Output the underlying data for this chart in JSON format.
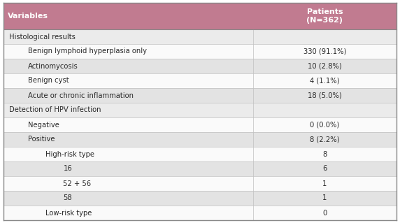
{
  "header_bg": "#c17b90",
  "header_text_color": "#ffffff",
  "text_color": "#2a2a2a",
  "header_col1": "Variables",
  "header_col2": "Patients\n(N=362)",
  "rows": [
    {
      "label": "Histological results",
      "value": "",
      "indent": 0,
      "section": true,
      "bg": "#ebebeb"
    },
    {
      "label": "Benign lymphoid hyperplasia only",
      "value": "330 (91.1%)",
      "indent": 1,
      "section": false,
      "bg": "#fafafa"
    },
    {
      "label": "Actinomycosis",
      "value": "10 (2.8%)",
      "indent": 1,
      "section": false,
      "bg": "#e3e3e3"
    },
    {
      "label": "Benign cyst",
      "value": "4 (1.1%)",
      "indent": 1,
      "section": false,
      "bg": "#fafafa"
    },
    {
      "label": "Acute or chronic inflammation",
      "value": "18 (5.0%)",
      "indent": 1,
      "section": false,
      "bg": "#e3e3e3"
    },
    {
      "label": "Detection of HPV infection",
      "value": "",
      "indent": 0,
      "section": true,
      "bg": "#ebebeb"
    },
    {
      "label": "Negative",
      "value": "0 (0.0%)",
      "indent": 1,
      "section": false,
      "bg": "#fafafa"
    },
    {
      "label": "Positive",
      "value": "8 (2.2%)",
      "indent": 1,
      "section": false,
      "bg": "#e3e3e3"
    },
    {
      "label": "High-risk type",
      "value": "8",
      "indent": 2,
      "section": false,
      "bg": "#fafafa"
    },
    {
      "label": "16",
      "value": "6",
      "indent": 3,
      "section": false,
      "bg": "#e3e3e3"
    },
    {
      "label": "52 + 56",
      "value": "1",
      "indent": 3,
      "section": false,
      "bg": "#fafafa"
    },
    {
      "label": "58",
      "value": "1",
      "indent": 3,
      "section": false,
      "bg": "#e3e3e3"
    },
    {
      "label": "Low-risk type",
      "value": "0",
      "indent": 2,
      "section": false,
      "bg": "#fafafa"
    }
  ],
  "col_split": 0.635,
  "font_size": 7.2,
  "header_font_size": 8.0,
  "indent_sizes": [
    0.008,
    0.055,
    0.1,
    0.145
  ]
}
